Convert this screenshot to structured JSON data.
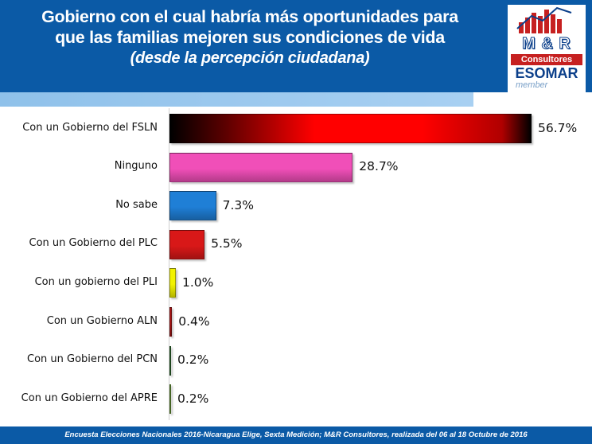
{
  "header": {
    "title_line1": "Gobierno con el cual habría más oportunidades para",
    "title_line2": "que las familias mejoren sus condiciones de vida",
    "subtitle": "(desde la percepción ciudadana)"
  },
  "logo": {
    "mr": "M & R",
    "consultores": "Consultores",
    "esomar": "ESOMAR",
    "member": "member"
  },
  "footer": {
    "text": "Encuesta Elecciones Nacionales 2016-Nicaragua Elige, Sexta Medición; M&R Consultores, realizada del 06 al 18 Octubre de 2016"
  },
  "chart_data": {
    "type": "bar",
    "orientation": "horizontal",
    "categories": [
      "Con un Gobierno del FSLN",
      "Ninguno",
      "No sabe",
      "Con un Gobierno del PLC",
      "Con un gobierno del PLI",
      "Con un Gobierno ALN",
      "Con un Gobierno del PCN",
      "Con un Gobierno del APRE"
    ],
    "values": [
      56.7,
      28.7,
      7.3,
      5.5,
      1.0,
      0.4,
      0.2,
      0.2
    ],
    "value_labels": [
      "56.7%",
      "28.7%",
      "7.3%",
      "5.5%",
      "1.0%",
      "0.4%",
      "0.2%",
      "0.2%"
    ],
    "colors": [
      "#ff0000",
      "#f04fb8",
      "#1f7fd6",
      "#d81818",
      "#f2f200",
      "#b01818",
      "#2e6b2e",
      "#6b9b3a"
    ],
    "xlim": [
      0,
      56.7
    ],
    "grid": false,
    "legend": "none"
  }
}
